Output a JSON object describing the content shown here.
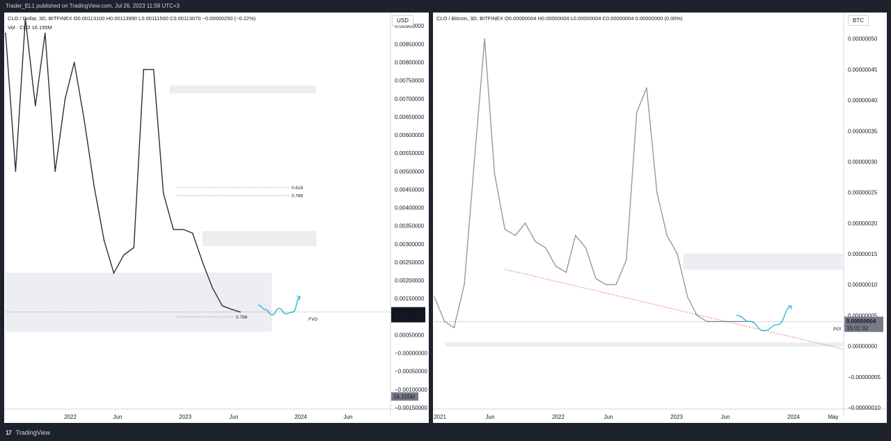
{
  "header": {
    "text": "Trader_EL1 published on TradingView.com, Jul 26, 2023 11:58 UTC+3"
  },
  "footer": {
    "logo": "17",
    "brand": "TradingView"
  },
  "chart_data": [
    {
      "type": "line",
      "title": "CLO / Dollar, 3D, BITFINEX",
      "ohlc": "O0.00113100 H0.00113990 L0.00111500 C0.00113070 −0.00000250 (−0.22%)",
      "volume": "Vol · CLO  16.155M",
      "currency": "USD",
      "ylim": [
        -0.0015,
        0.0091
      ],
      "y_ticks": [
        "0.00900000",
        "0.00850000",
        "0.00800000",
        "0.00750000",
        "0.00700000",
        "0.00650000",
        "0.00600000",
        "0.00550000",
        "0.00500000",
        "0.00450000",
        "0.00400000",
        "0.00350000",
        "0.00300000",
        "0.00250000",
        "0.00200000",
        "0.00150000",
        "0.00100000",
        "0.00050000",
        "−0.00000000",
        "−0.00050000",
        "−0.00100000",
        "−0.00150000"
      ],
      "x_ticks": [
        "2022",
        "Jun",
        "2023",
        "Jun",
        "2024",
        "Jun"
      ],
      "x": [
        "2021-08-01",
        "2021-09-01",
        "2021-10-01",
        "2021-11-01",
        "2021-12-01",
        "2022-01-01",
        "2022-02-01",
        "2022-03-01",
        "2022-04-01",
        "2022-05-01",
        "2022-06-01",
        "2022-07-01",
        "2022-08-01",
        "2022-09-01",
        "2022-10-01",
        "2022-11-01",
        "2022-12-01",
        "2023-01-01",
        "2023-02-01",
        "2023-03-01",
        "2023-04-01",
        "2023-05-01",
        "2023-06-01",
        "2023-07-01",
        "2023-07-26"
      ],
      "close": [
        0.0088,
        0.005,
        0.0092,
        0.0068,
        0.0088,
        0.005,
        0.007,
        0.008,
        0.0064,
        0.0046,
        0.0031,
        0.0022,
        0.0027,
        0.0029,
        0.0078,
        0.0078,
        0.0044,
        0.0034,
        0.0034,
        0.0033,
        0.0025,
        0.0018,
        0.0013,
        0.0012,
        0.00113
      ],
      "last_price": "0.00113070",
      "countdown": "15:01:32",
      "volume_label": "16.155M",
      "zones": [
        {
          "label": "",
          "y": [
            0.00715,
            0.00735
          ]
        },
        {
          "label": "",
          "y": [
            0.00295,
            0.00335
          ]
        },
        {
          "label": "",
          "y": [
            0.0006,
            0.0022
          ]
        }
      ],
      "fib_levels": [
        {
          "label": "0.618",
          "y": 0.00455
        },
        {
          "label": "0.786",
          "y": 0.00433
        },
        {
          "label": "0.786",
          "y": 0.00099
        }
      ],
      "fvg_label": "FVG",
      "projection": [
        0.00132,
        0.0012,
        0.00105,
        0.00123,
        0.00108,
        0.00113,
        0.00155
      ]
    },
    {
      "type": "line",
      "title": "CLO / Bitcoin, 3D, BITFINEX",
      "ohlc": "O0.00000004 H0.00000004 L0.00000004 C0.00000004 0.00000000 (0.00%)",
      "currency": "BTC",
      "ylim": [
        -1e-07,
        5.2e-07
      ],
      "y_ticks": [
        "0.00000050",
        "0.00000045",
        "0.00000040",
        "0.00000035",
        "0.00000030",
        "0.00000025",
        "0.00000020",
        "0.00000015",
        "0.00000010",
        "0.00000005",
        "0.00000000",
        "−0.00000005",
        "−0.00000010"
      ],
      "x_ticks": [
        "2021",
        "Jun",
        "2022",
        "Jun",
        "2023",
        "Jun",
        "2024",
        "May"
      ],
      "x": [
        "2021-01-01",
        "2021-02-01",
        "2021-03-01",
        "2021-04-01",
        "2021-05-01",
        "2021-06-01",
        "2021-07-01",
        "2021-08-01",
        "2021-09-01",
        "2021-10-01",
        "2021-11-01",
        "2021-12-01",
        "2022-01-01",
        "2022-02-01",
        "2022-03-01",
        "2022-04-01",
        "2022-05-01",
        "2022-06-01",
        "2022-07-01",
        "2022-08-01",
        "2022-09-01",
        "2022-10-01",
        "2022-11-01",
        "2022-12-01",
        "2023-01-01",
        "2023-02-01",
        "2023-03-01",
        "2023-04-01",
        "2023-05-01",
        "2023-06-01",
        "2023-07-01",
        "2023-07-26"
      ],
      "close": [
        8e-08,
        4e-08,
        3e-08,
        1e-07,
        3e-07,
        5e-07,
        2.8e-07,
        1.9e-07,
        1.8e-07,
        2e-07,
        1.7e-07,
        1.6e-07,
        1.3e-07,
        1.2e-07,
        1.8e-07,
        1.6e-07,
        1.1e-07,
        1e-07,
        1e-07,
        1.4e-07,
        3.8e-07,
        4.2e-07,
        2.5e-07,
        1.8e-07,
        1.5e-07,
        8e-08,
        5e-08,
        4e-08,
        4e-08,
        4e-08,
        4e-08,
        4e-08
      ],
      "last_price": "0.00000004",
      "countdown": "15:01:32",
      "zones": [
        {
          "label": "",
          "y": [
            1.25e-07,
            1.5e-07
          ]
        },
        {
          "label": "POI",
          "y": [
            0.0,
            5.5e-09
          ]
        }
      ],
      "poi_label": "POI",
      "trendline": [
        {
          "x": "2021-08-01",
          "y": 1.25e-07
        },
        {
          "x": "2024-05-15",
          "y": -5e-09
        }
      ],
      "projection": [
        5e-08,
        4e-08,
        2.5e-08,
        3.5e-08,
        6.5e-08
      ]
    }
  ]
}
